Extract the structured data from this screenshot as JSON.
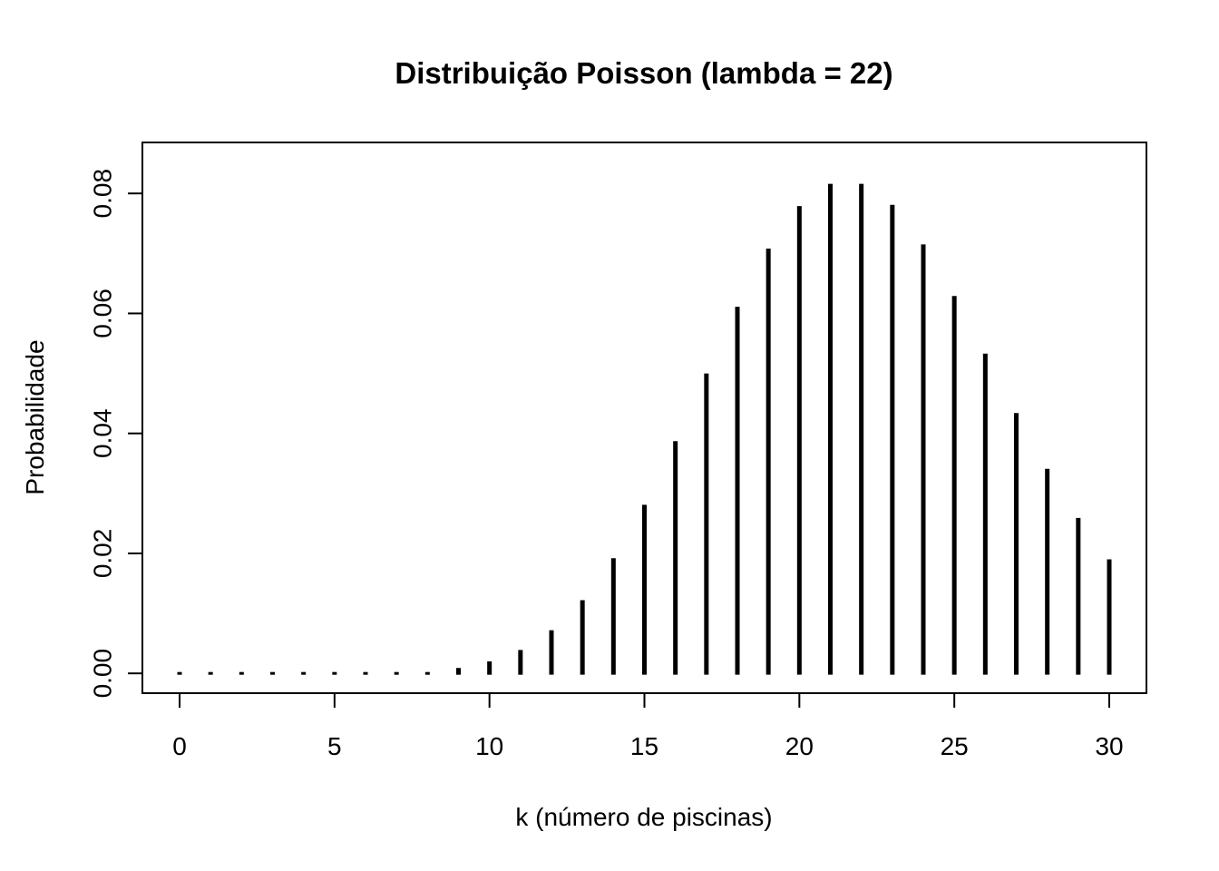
{
  "chart_data": {
    "type": "bar",
    "subtype": "probability-mass-spikes",
    "title": "Distribuição Poisson (lambda = 22)",
    "xlabel": "k (número de piscinas)",
    "ylabel": "Probabilidade",
    "x": [
      0,
      1,
      2,
      3,
      4,
      5,
      6,
      7,
      8,
      9,
      10,
      11,
      12,
      13,
      14,
      15,
      16,
      17,
      18,
      19,
      20,
      21,
      22,
      23,
      24,
      25,
      26,
      27,
      28,
      29,
      30
    ],
    "values": [
      0.0,
      0.0,
      0.0,
      0.0,
      0.0,
      0.0,
      0.0,
      0.0,
      0.0002,
      0.0009,
      0.002,
      0.0039,
      0.0072,
      0.0122,
      0.0192,
      0.0281,
      0.0387,
      0.05,
      0.0611,
      0.0708,
      0.0779,
      0.0816,
      0.0816,
      0.0781,
      0.0715,
      0.0629,
      0.0533,
      0.0434,
      0.0341,
      0.0259,
      0.019
    ],
    "xlim": [
      -1.2,
      31.2
    ],
    "ylim": [
      -0.0033,
      0.0885
    ],
    "x_ticks": [
      "0",
      "5",
      "10",
      "15",
      "20",
      "25",
      "30"
    ],
    "y_ticks": [
      "0.00",
      "0.02",
      "0.04",
      "0.06",
      "0.08"
    ],
    "grid": false,
    "legend": "none",
    "colors": {
      "spike": "#000000",
      "frame": "#000000",
      "background": "#ffffff"
    }
  }
}
